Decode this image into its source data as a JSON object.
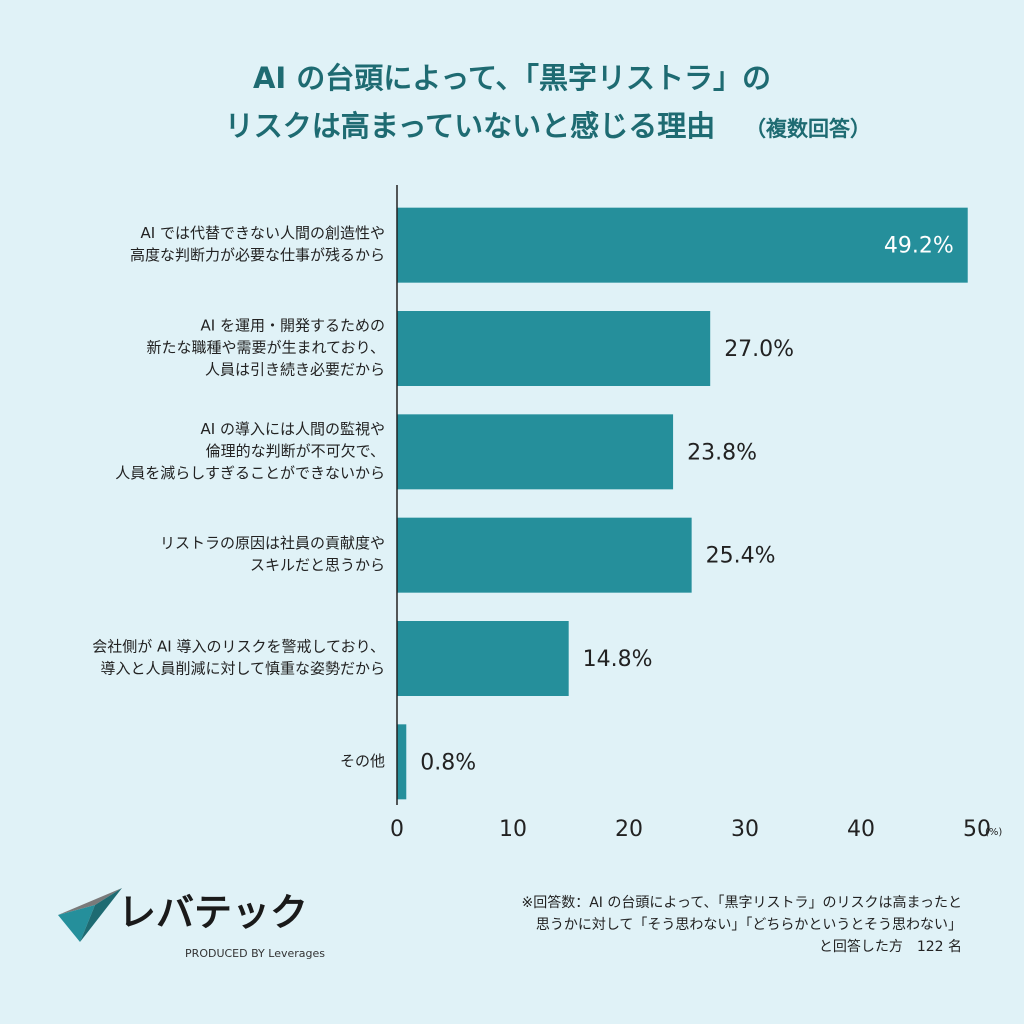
{
  "chart_data": {
    "type": "hbar",
    "title": [
      "AI の台頭によって、「黒字リストラ」の",
      "リスクは高まっていないと感じる理由"
    ],
    "subtitle": "（複数回答）",
    "categories": [
      [
        "AI では代替できない人間の創造性や",
        "高度な判断力が必要な仕事が残るから"
      ],
      [
        "AI を運用・開発するための",
        "新たな職種や需要が生まれており、",
        "人員は引き続き必要だから"
      ],
      [
        "AI の導入には人間の監視や",
        "倫理的な判断が不可欠で、",
        "人員を減らしすぎることができないから"
      ],
      [
        "リストラの原因は社員の貢献度や",
        "スキルだと思うから"
      ],
      [
        "会社側が AI 導入のリスクを警戒しており、",
        "導入と人員削減に対して慎重な姿勢だから"
      ],
      [
        "その他"
      ]
    ],
    "values": [
      49.2,
      27.0,
      23.8,
      25.4,
      14.8,
      0.8
    ],
    "value_labels": [
      "49.2%",
      "27.0%",
      "23.8%",
      "25.4%",
      "14.8%",
      "0.8%"
    ],
    "color": "#258f9b",
    "xlim": [
      0,
      50
    ],
    "xticks": [
      0,
      10,
      20,
      30,
      40,
      50
    ],
    "x_unit": "(%)",
    "grid": false,
    "note": [
      "※回答数：AI の台頭によって、「黒字リストラ」のリスクは高まったと",
      "思うかに対して「そう思わない」「どちらかというとそう思わない」",
      "と回答した方　122 名"
    ],
    "logo": {
      "name": "レバテック",
      "tagline": "PRODUCED BY Leverages"
    }
  }
}
